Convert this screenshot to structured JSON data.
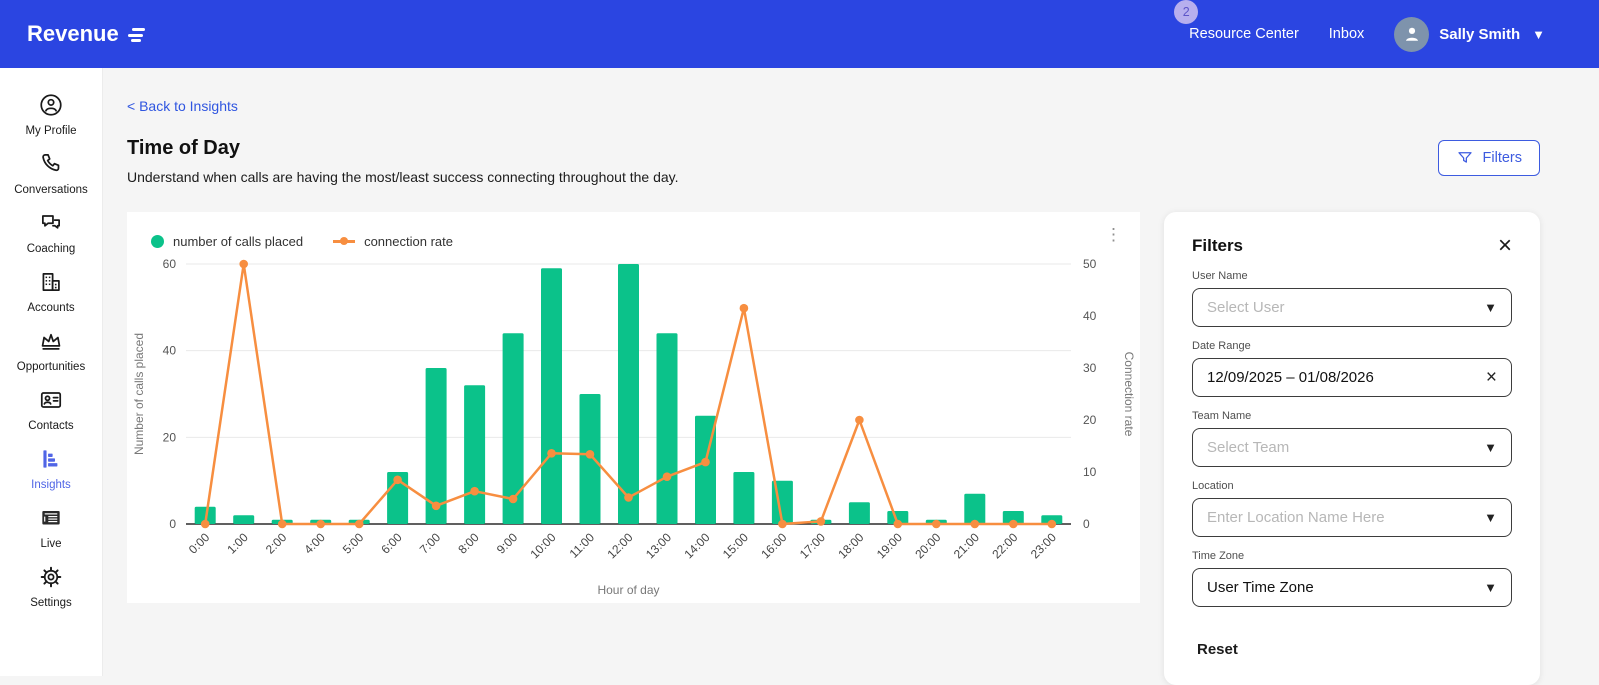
{
  "nav": {
    "logo": "Revenue",
    "badge": "2",
    "items": [
      "Resource Center",
      "Inbox"
    ],
    "user": "Sally Smith"
  },
  "sidebar": {
    "items": [
      {
        "label": "My Profile",
        "icon": "profile"
      },
      {
        "label": "Conversations",
        "icon": "phone"
      },
      {
        "label": "Coaching",
        "icon": "chat-bubbles"
      },
      {
        "label": "Accounts",
        "icon": "buildings"
      },
      {
        "label": "Opportunities",
        "icon": "crown"
      },
      {
        "label": "Contacts",
        "icon": "id-card"
      },
      {
        "label": "Insights",
        "icon": "bar-chart",
        "active": true
      },
      {
        "label": "Live",
        "icon": "newspaper"
      },
      {
        "label": "Settings",
        "icon": "gear"
      }
    ]
  },
  "page": {
    "back_link": "< Back to Insights",
    "title": "Time of Day",
    "subtitle": "Understand when calls are having the most/least success connecting throughout the day.",
    "filters_button": "Filters"
  },
  "chart_data": {
    "type": "bar+line",
    "categories": [
      "0:00",
      "1:00",
      "2:00",
      "4:00",
      "5:00",
      "6:00",
      "7:00",
      "8:00",
      "9:00",
      "10:00",
      "11:00",
      "12:00",
      "13:00",
      "14:00",
      "15:00",
      "16:00",
      "17:00",
      "18:00",
      "19:00",
      "20:00",
      "21:00",
      "22:00",
      "23:00"
    ],
    "series": [
      {
        "name": "number of calls placed",
        "type": "bar",
        "axis": "left",
        "color": "#0BC28A",
        "values": [
          4,
          2,
          1,
          1,
          1,
          12,
          36,
          32,
          44,
          59,
          30,
          60,
          44,
          25,
          12,
          10,
          1,
          5,
          3,
          1,
          7,
          3,
          2
        ]
      },
      {
        "name": "connection rate",
        "type": "line",
        "axis": "right",
        "color": "#F78E40",
        "values": [
          0,
          50,
          0,
          0,
          0,
          8.5,
          3.5,
          6.3,
          4.8,
          13.6,
          13.4,
          5.1,
          9.1,
          11.9,
          41.5,
          0,
          0.5,
          20,
          0,
          0,
          0,
          0,
          0
        ]
      }
    ],
    "left_axis": {
      "label": "Number of calls placed",
      "ticks": [
        0,
        20,
        40,
        60
      ],
      "range": [
        0,
        60
      ]
    },
    "right_axis": {
      "label": "Connection rate",
      "ticks": [
        0,
        10,
        20,
        30,
        40,
        50
      ],
      "range": [
        0,
        50
      ]
    },
    "xlabel": "Hour of day",
    "grid": "horizontal",
    "legend_position": "top-left"
  },
  "filters_panel": {
    "title": "Filters",
    "fields": [
      {
        "label": "User Name",
        "placeholder": "Select User",
        "type": "select"
      },
      {
        "label": "Date Range",
        "value": "12/09/2025 – 01/08/2026",
        "type": "date"
      },
      {
        "label": "Team Name",
        "placeholder": "Select Team",
        "type": "select"
      },
      {
        "label": "Location",
        "placeholder": "Enter Location Name Here",
        "type": "select"
      },
      {
        "label": "Time Zone",
        "value": "User Time Zone",
        "type": "select"
      }
    ],
    "reset_label": "Reset"
  },
  "colors": {
    "nav_bg": "#2B45E1",
    "accent_blue": "#3D5BE0",
    "active_blue": "#5065E6",
    "green": "#0BC28A",
    "orange": "#F78E40",
    "page_bg": "#F5F5F5"
  }
}
